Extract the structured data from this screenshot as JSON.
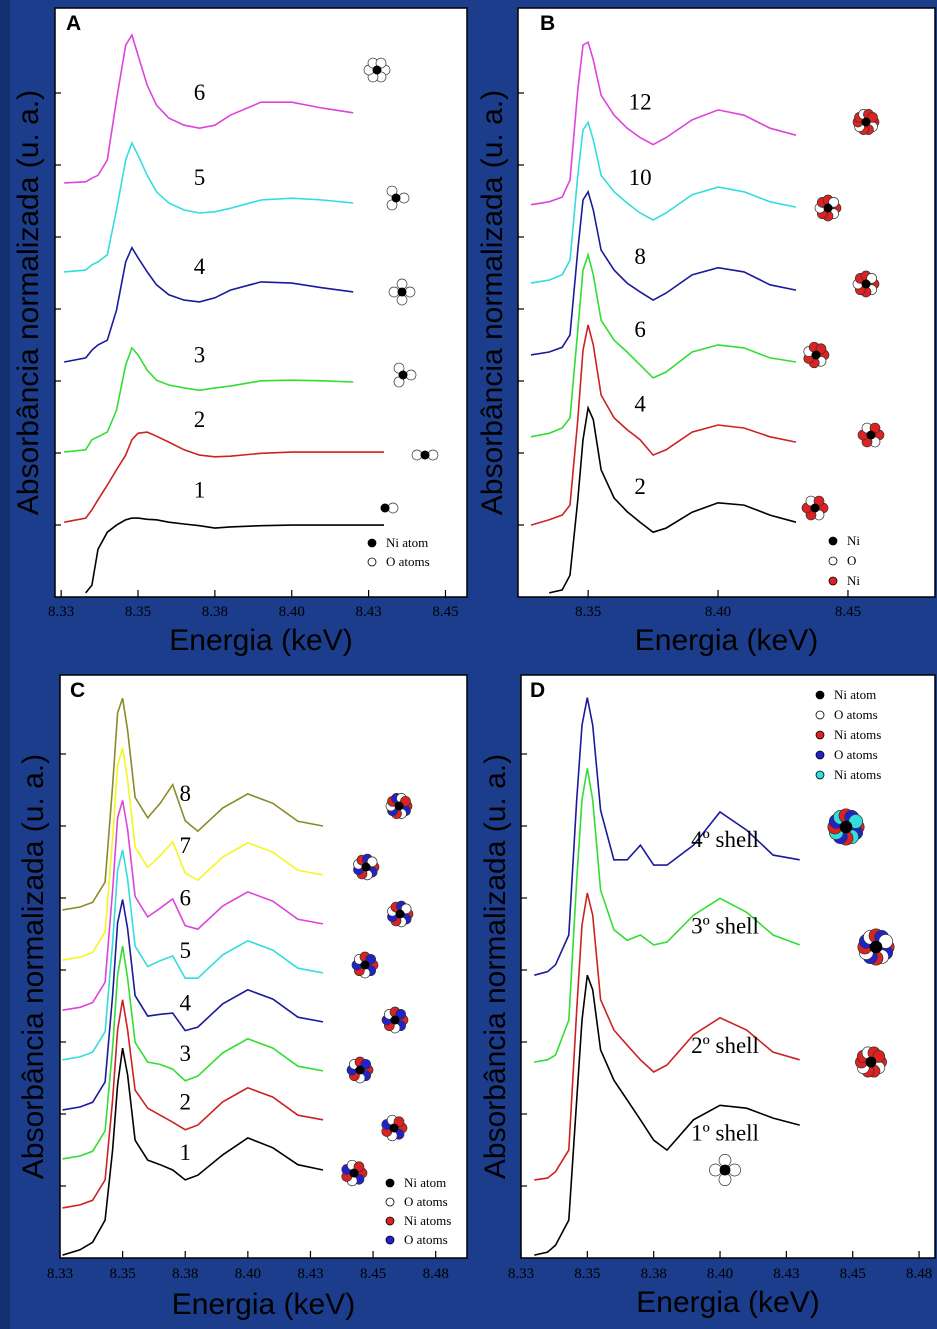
{
  "chart_data": [
    {
      "type": "line",
      "panel": "A",
      "xlabel": "Energia (keV)",
      "ylabel": "Absorbância normalizada (u. a.)",
      "xlim": [
        8.323,
        8.457
      ],
      "ylim": [
        0,
        100
      ],
      "xticks": [
        {
          "value": 8.325,
          "label": "8.33"
        },
        {
          "value": 8.35,
          "label": "8.35"
        },
        {
          "value": 8.375,
          "label": "8.38"
        },
        {
          "value": 8.4,
          "label": "8.40"
        },
        {
          "value": 8.425,
          "label": "8.43"
        },
        {
          "value": 8.45,
          "label": "8.45"
        }
      ],
      "x": [
        8.326,
        8.333,
        8.335,
        8.337,
        8.34,
        8.343,
        8.346,
        8.348,
        8.35,
        8.353,
        8.356,
        8.36,
        8.365,
        8.37,
        8.375,
        8.38,
        8.39,
        8.4,
        8.41,
        8.42,
        8.43
      ],
      "series": [
        {
          "name": "1",
          "color": "#000000",
          "values": [
            null,
            0.7,
            2.0,
            8.1,
            11.0,
            12.2,
            13.1,
            13.4,
            13.4,
            13.2,
            13.1,
            12.7,
            12.4,
            12.1,
            11.7,
            11.9,
            12.1,
            12.2,
            12.2,
            12.2,
            12.2
          ]
        },
        {
          "name": "2",
          "color": "#cc2222",
          "values": [
            12.7,
            13.4,
            14.8,
            16.5,
            19.0,
            21.6,
            24.1,
            26.7,
            27.8,
            28.0,
            27.3,
            26.3,
            25.0,
            24.1,
            23.8,
            23.9,
            24.4,
            24.6,
            24.6,
            24.6,
            24.6
          ]
        },
        {
          "name": "3",
          "color": "#33dd33",
          "values": [
            24.6,
            25.0,
            26.7,
            27.2,
            28.0,
            31.7,
            39.4,
            42.3,
            41.1,
            38.5,
            36.8,
            36.0,
            35.5,
            35.1,
            35.5,
            35.8,
            36.7,
            36.8,
            36.7,
            36.5,
            null
          ]
        },
        {
          "name": "4",
          "color": "#1a1a9a",
          "values": [
            39.9,
            40.6,
            41.9,
            42.8,
            43.6,
            48.7,
            56.9,
            59.3,
            57.6,
            55.2,
            53.0,
            51.3,
            50.4,
            50.1,
            50.8,
            52.1,
            53.5,
            53.3,
            52.5,
            51.8,
            null
          ]
        },
        {
          "name": "5",
          "color": "#33dddd",
          "values": [
            55.2,
            55.5,
            56.4,
            56.9,
            58.1,
            65.7,
            74.2,
            77.1,
            75.0,
            71.6,
            68.8,
            66.9,
            65.7,
            65.2,
            65.4,
            66.0,
            67.4,
            67.7,
            67.4,
            66.9,
            null
          ]
        },
        {
          "name": "6",
          "color": "#dd44dd",
          "values": [
            70.3,
            70.5,
            71.1,
            71.6,
            74.2,
            84.4,
            93.7,
            95.4,
            92.0,
            86.9,
            83.5,
            81.3,
            80.1,
            79.6,
            80.1,
            81.8,
            84.0,
            84.0,
            83.0,
            82.2,
            null
          ]
        }
      ],
      "atom_legend": [
        {
          "label": "Ni atom",
          "color": "#000000"
        },
        {
          "label": "O atoms",
          "color": "#ffffff"
        }
      ]
    },
    {
      "type": "line",
      "panel": "B",
      "xlabel": "Energia (keV)",
      "ylabel": "Absorbância normalizada (u. a.)",
      "xlim": [
        8.323,
        8.4835
      ],
      "ylim": [
        0,
        100
      ],
      "xticks": [
        {
          "value": 8.35,
          "label": "8.35"
        },
        {
          "value": 8.4,
          "label": "8.40"
        },
        {
          "value": 8.45,
          "label": "8.45"
        }
      ],
      "x": [
        8.328,
        8.335,
        8.34,
        8.343,
        8.346,
        8.348,
        8.35,
        8.352,
        8.355,
        8.36,
        8.365,
        8.37,
        8.375,
        8.38,
        8.39,
        8.4,
        8.41,
        8.42,
        8.43
      ],
      "series": [
        {
          "name": "2",
          "color": "#000000",
          "values": [
            null,
            0.7,
            1.2,
            3.7,
            16.5,
            26.7,
            32.1,
            30.1,
            21.6,
            16.8,
            14.5,
            12.7,
            11.0,
            11.7,
            14.4,
            16.0,
            15.6,
            13.9,
            12.7
          ]
        },
        {
          "name": "4",
          "color": "#cc2222",
          "values": [
            12.2,
            13.1,
            13.9,
            15.6,
            30.1,
            41.9,
            46.2,
            42.8,
            34.3,
            30.4,
            28.4,
            26.7,
            24.1,
            25.0,
            28.0,
            29.2,
            28.7,
            27.2,
            26.3
          ]
        },
        {
          "name": "6",
          "color": "#33dd33",
          "values": [
            27.2,
            27.8,
            28.7,
            30.4,
            45.3,
            55.5,
            58.1,
            54.7,
            47.0,
            43.6,
            41.6,
            39.4,
            37.2,
            38.2,
            41.6,
            42.8,
            42.3,
            40.6,
            39.9
          ]
        },
        {
          "name": "8",
          "color": "#1a1a9a",
          "values": [
            41.1,
            41.6,
            42.4,
            44.5,
            58.9,
            67.4,
            68.8,
            65.7,
            58.9,
            55.5,
            53.3,
            51.8,
            50.4,
            51.6,
            54.7,
            55.9,
            55.2,
            53.0,
            52.1
          ]
        },
        {
          "name": "10",
          "color": "#33dddd",
          "values": [
            53.3,
            53.8,
            54.7,
            57.2,
            71.6,
            79.3,
            80.6,
            77.6,
            71.6,
            68.8,
            66.9,
            65.2,
            64.0,
            65.2,
            68.3,
            69.6,
            68.8,
            67.1,
            66.2
          ]
        },
        {
          "name": "12",
          "color": "#dd44dd",
          "values": [
            66.6,
            67.1,
            67.9,
            70.8,
            86.1,
            93.7,
            94.2,
            91.2,
            85.2,
            81.8,
            79.6,
            78.0,
            76.8,
            78.0,
            81.0,
            82.7,
            81.8,
            79.6,
            78.4
          ]
        }
      ],
      "atom_legend": [
        {
          "label": "Ni",
          "color": "#000000"
        },
        {
          "label": "O",
          "color": "#ffffff"
        },
        {
          "label": "Ni",
          "color": "#dd2222"
        }
      ]
    },
    {
      "type": "line",
      "panel": "C",
      "xlabel": "Energia (keV)",
      "ylabel": "Absorbância normalizada (u. a.)",
      "xlim": [
        8.325,
        8.4875
      ],
      "ylim": [
        0,
        100
      ],
      "xticks": [
        {
          "value": 8.325,
          "label": "8.33"
        },
        {
          "value": 8.35,
          "label": "8.35"
        },
        {
          "value": 8.375,
          "label": "8.38"
        },
        {
          "value": 8.4,
          "label": "8.40"
        },
        {
          "value": 8.425,
          "label": "8.43"
        },
        {
          "value": 8.45,
          "label": "8.45"
        },
        {
          "value": 8.475,
          "label": "8.48"
        }
      ],
      "x": [
        8.326,
        8.333,
        8.338,
        8.343,
        8.346,
        8.348,
        8.35,
        8.352,
        8.355,
        8.36,
        8.365,
        8.37,
        8.375,
        8.38,
        8.39,
        8.4,
        8.41,
        8.42,
        8.43
      ],
      "series": [
        {
          "name": "1",
          "color": "#000000",
          "values": [
            0.5,
            1.4,
            2.7,
            6.5,
            18.5,
            29.7,
            36.0,
            31.4,
            20.2,
            16.8,
            16.0,
            15.1,
            13.4,
            14.2,
            17.7,
            20.6,
            18.9,
            16.0,
            15.1
          ]
        },
        {
          "name": "2",
          "color": "#cc2222",
          "values": [
            8.6,
            9.1,
            9.9,
            13.4,
            27.1,
            39.1,
            44.3,
            39.1,
            28.8,
            25.7,
            24.5,
            23.3,
            22.0,
            22.8,
            26.8,
            29.2,
            27.6,
            24.5,
            23.7
          ]
        },
        {
          "name": "3",
          "color": "#33dd33",
          "values": [
            17.0,
            17.5,
            18.3,
            21.8,
            36.0,
            48.5,
            53.5,
            48.0,
            37.0,
            33.6,
            33.2,
            32.4,
            30.4,
            31.2,
            35.2,
            37.6,
            36.0,
            32.9,
            32.1
          ]
        },
        {
          "name": "4",
          "color": "#1a1a9a",
          "values": [
            25.4,
            25.9,
            26.7,
            30.2,
            45.0,
            57.5,
            61.5,
            56.5,
            45.0,
            41.5,
            41.8,
            42.0,
            39.0,
            39.6,
            43.6,
            46.0,
            44.4,
            41.3,
            40.5
          ]
        },
        {
          "name": "5",
          "color": "#33dddd",
          "values": [
            34.0,
            34.5,
            35.3,
            38.8,
            54.0,
            66.5,
            70.0,
            65.0,
            53.5,
            50.0,
            51.0,
            51.8,
            48.0,
            48.0,
            52.0,
            54.4,
            52.8,
            49.7,
            48.9
          ]
        },
        {
          "name": "6",
          "color": "#dd44dd",
          "values": [
            42.5,
            43.0,
            43.8,
            47.3,
            63.0,
            75.5,
            78.5,
            73.5,
            62.0,
            58.5,
            60.0,
            61.6,
            57.0,
            56.4,
            60.4,
            62.8,
            61.2,
            58.1,
            57.3
          ]
        },
        {
          "name": "7",
          "color": "#f5f522",
          "values": [
            51.1,
            51.6,
            52.4,
            55.9,
            72.0,
            84.5,
            87.5,
            82.0,
            70.5,
            67.0,
            69.0,
            71.4,
            66.0,
            64.8,
            68.8,
            71.2,
            69.6,
            66.5,
            65.7
          ]
        },
        {
          "name": "8",
          "color": "#8a8a2a",
          "values": [
            59.7,
            60.2,
            61.0,
            64.5,
            81.0,
            93.5,
            96.0,
            90.5,
            79.0,
            75.5,
            78.0,
            81.2,
            75.0,
            73.2,
            77.2,
            79.6,
            78.0,
            74.9,
            74.1
          ]
        }
      ],
      "atom_legend": [
        {
          "label": "Ni atom",
          "color": "#000000"
        },
        {
          "label": "O atoms",
          "color": "#ffffff"
        },
        {
          "label": "Ni atoms",
          "color": "#dd2222"
        },
        {
          "label": "O atoms",
          "color": "#2222cc"
        }
      ]
    },
    {
      "type": "line",
      "panel": "D",
      "xlabel": "Energia (keV)",
      "ylabel": "Absorbância normalizada (u. a.)",
      "xlim": [
        8.325,
        8.481
      ],
      "ylim": [
        0,
        100
      ],
      "xticks": [
        {
          "value": 8.325,
          "label": "8.33"
        },
        {
          "value": 8.35,
          "label": "8.35"
        },
        {
          "value": 8.375,
          "label": "8.38"
        },
        {
          "value": 8.4,
          "label": "8.40"
        },
        {
          "value": 8.425,
          "label": "8.43"
        },
        {
          "value": 8.45,
          "label": "8.45"
        },
        {
          "value": 8.475,
          "label": "8.48"
        }
      ],
      "x": [
        8.33,
        8.335,
        8.338,
        8.343,
        8.346,
        8.348,
        8.35,
        8.352,
        8.355,
        8.36,
        8.365,
        8.37,
        8.375,
        8.38,
        8.39,
        8.4,
        8.41,
        8.42,
        8.43
      ],
      "series": [
        {
          "name": "1º shell",
          "color": "#000000",
          "values": [
            0.5,
            1.0,
            2.2,
            6.5,
            27.1,
            40.8,
            48.5,
            46.0,
            35.7,
            30.5,
            27.1,
            23.7,
            20.2,
            18.5,
            23.7,
            26.2,
            25.7,
            24.0,
            22.8
          ]
        },
        {
          "name": "2º shell",
          "color": "#cc2222",
          "values": [
            13.4,
            13.7,
            14.8,
            18.5,
            42.5,
            57.1,
            62.6,
            58.8,
            44.3,
            39.1,
            36.5,
            34.0,
            31.9,
            33.1,
            38.3,
            41.2,
            39.1,
            35.3,
            34.0
          ]
        },
        {
          "name": "3º shell",
          "color": "#33dd33",
          "values": [
            33.6,
            34.0,
            34.8,
            40.8,
            64.8,
            78.6,
            84.0,
            78.6,
            63.1,
            56.3,
            54.5,
            55.4,
            53.7,
            54.2,
            58.8,
            61.7,
            59.3,
            55.4,
            53.7
          ]
        },
        {
          "name": "4º shell",
          "color": "#1a1a9a",
          "values": [
            48.5,
            49.1,
            50.3,
            55.4,
            78.6,
            91.4,
            96.1,
            91.4,
            76.8,
            68.3,
            68.3,
            70.8,
            67.4,
            67.4,
            70.8,
            76.5,
            73.4,
            69.1,
            68.3
          ]
        }
      ],
      "atom_legend": [
        {
          "label": "Ni atom",
          "color": "#000000"
        },
        {
          "label": "O atoms",
          "color": "#ffffff"
        },
        {
          "label": "Ni atoms",
          "color": "#dd2222"
        },
        {
          "label": "O atoms",
          "color": "#2222cc"
        },
        {
          "label": "Ni atoms",
          "color": "#33dddd"
        }
      ]
    }
  ]
}
